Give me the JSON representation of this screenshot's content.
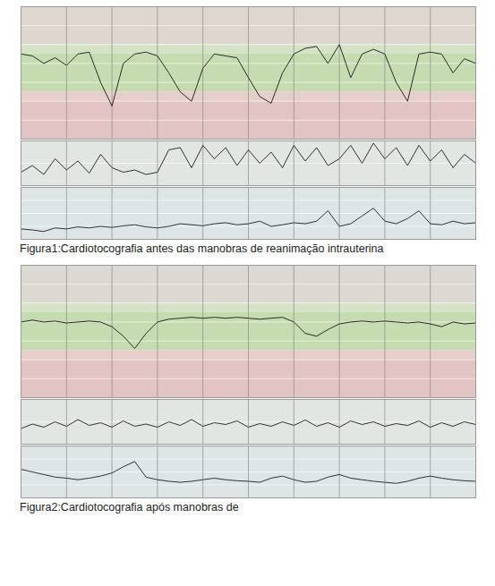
{
  "chart_data": [
    {
      "type": "line",
      "caption": "Figura1:Cardiotocografia antes das manobras de reanimação intrauterina",
      "grid": true,
      "tick_labels": false,
      "xlim": [
        0,
        40
      ],
      "xticks": [
        0,
        4,
        8,
        12,
        16,
        20,
        24,
        28,
        32,
        36,
        40
      ],
      "x": [
        0,
        1,
        2,
        3,
        4,
        5,
        6,
        7,
        8,
        9,
        10,
        11,
        12,
        13,
        14,
        15,
        16,
        17,
        18,
        19,
        20,
        21,
        22,
        23,
        24,
        25,
        26,
        27,
        28,
        29,
        30,
        31,
        32,
        33,
        34,
        35,
        36,
        37,
        38,
        39,
        40
      ],
      "panels": [
        {
          "ylim": [
            60,
            200
          ],
          "yticks": [
            60,
            80,
            100,
            120,
            140,
            160,
            180,
            200
          ],
          "color": "#2b2b2b",
          "bands": [
            {
              "from": 160,
              "to": 200,
              "color": "#dfd6cf"
            },
            {
              "from": 150,
              "to": 160,
              "color": "#d4e3c4"
            },
            {
              "from": 110,
              "to": 150,
              "color": "#c5dcb0"
            },
            {
              "from": 100,
              "to": 110,
              "color": "#e6cfcb"
            },
            {
              "from": 60,
              "to": 100,
              "color": "#e3c4c4"
            }
          ],
          "values": [
            150,
            148,
            140,
            146,
            138,
            150,
            152,
            120,
            95,
            140,
            150,
            152,
            148,
            130,
            110,
            100,
            135,
            150,
            148,
            146,
            125,
            105,
            98,
            130,
            150,
            156,
            158,
            140,
            160,
            125,
            150,
            155,
            150,
            120,
            100,
            150,
            152,
            150,
            130,
            145,
            140
          ]
        },
        {
          "ylim": [
            0,
            100
          ],
          "yticks": [
            0,
            50,
            100
          ],
          "color": "#333333",
          "bands": [
            {
              "from": 0,
              "to": 100,
              "color": "#e2e6e3"
            }
          ],
          "values": [
            30,
            45,
            25,
            60,
            35,
            55,
            28,
            70,
            40,
            30,
            35,
            25,
            30,
            80,
            85,
            40,
            90,
            60,
            85,
            45,
            80,
            50,
            75,
            40,
            90,
            55,
            85,
            45,
            60,
            90,
            50,
            95,
            60,
            85,
            45,
            90,
            55,
            80,
            40,
            70,
            50
          ]
        },
        {
          "ylim": [
            0,
            100
          ],
          "yticks": [
            0,
            25,
            50,
            75,
            100
          ],
          "color": "#333333",
          "bands": [
            {
              "from": 0,
              "to": 100,
              "color": "#dde5e7"
            }
          ],
          "values": [
            20,
            18,
            15,
            22,
            20,
            24,
            22,
            25,
            23,
            26,
            28,
            24,
            22,
            25,
            30,
            28,
            26,
            30,
            32,
            28,
            30,
            35,
            25,
            28,
            32,
            30,
            35,
            55,
            25,
            30,
            45,
            60,
            35,
            30,
            40,
            55,
            30,
            28,
            35,
            30,
            32
          ]
        }
      ]
    },
    {
      "type": "line",
      "caption": "Figura2:Cardiotocografia após manobras de",
      "grid": true,
      "tick_labels": false,
      "xlim": [
        0,
        40
      ],
      "xticks": [
        0,
        4,
        8,
        12,
        16,
        20,
        24,
        28,
        32,
        36,
        40
      ],
      "x": [
        0,
        1,
        2,
        3,
        4,
        5,
        6,
        7,
        8,
        9,
        10,
        11,
        12,
        13,
        14,
        15,
        16,
        17,
        18,
        19,
        20,
        21,
        22,
        23,
        24,
        25,
        26,
        27,
        28,
        29,
        30,
        31,
        32,
        33,
        34,
        35,
        36,
        37,
        38,
        39,
        40
      ],
      "panels": [
        {
          "ylim": [
            60,
            200
          ],
          "yticks": [
            60,
            80,
            100,
            120,
            140,
            160,
            180,
            200
          ],
          "color": "#2b2b2b",
          "bands": [
            {
              "from": 160,
              "to": 200,
              "color": "#dcd8d2"
            },
            {
              "from": 150,
              "to": 160,
              "color": "#d4e3c4"
            },
            {
              "from": 110,
              "to": 150,
              "color": "#c5dcb0"
            },
            {
              "from": 100,
              "to": 110,
              "color": "#e6cfcb"
            },
            {
              "from": 60,
              "to": 100,
              "color": "#e3c4c4"
            }
          ],
          "values": [
            140,
            142,
            140,
            141,
            139,
            140,
            141,
            140,
            135,
            125,
            112,
            128,
            140,
            143,
            144,
            145,
            144,
            145,
            144,
            145,
            144,
            143,
            144,
            145,
            140,
            128,
            125,
            132,
            138,
            140,
            141,
            140,
            141,
            140,
            139,
            140,
            138,
            135,
            140,
            138,
            139
          ]
        },
        {
          "ylim": [
            0,
            100
          ],
          "yticks": [
            0,
            50,
            100
          ],
          "color": "#333333",
          "bands": [
            {
              "from": 0,
              "to": 100,
              "color": "#e2e6e3"
            }
          ],
          "values": [
            35,
            45,
            38,
            50,
            40,
            55,
            42,
            48,
            38,
            52,
            40,
            45,
            38,
            50,
            42,
            55,
            40,
            48,
            44,
            52,
            38,
            46,
            40,
            50,
            42,
            54,
            40,
            48,
            38,
            52,
            44,
            50,
            40,
            46,
            42,
            52,
            38,
            48,
            40,
            50,
            44
          ]
        },
        {
          "ylim": [
            0,
            100
          ],
          "yticks": [
            0,
            25,
            50,
            75,
            100
          ],
          "color": "#333333",
          "bands": [
            {
              "from": 0,
              "to": 100,
              "color": "#dde5e7"
            }
          ],
          "values": [
            55,
            50,
            45,
            40,
            38,
            35,
            38,
            42,
            48,
            60,
            70,
            40,
            35,
            32,
            30,
            32,
            35,
            38,
            35,
            33,
            32,
            30,
            38,
            42,
            35,
            30,
            32,
            40,
            45,
            38,
            35,
            32,
            30,
            28,
            32,
            38,
            42,
            38,
            35,
            33,
            32
          ]
        }
      ]
    }
  ]
}
